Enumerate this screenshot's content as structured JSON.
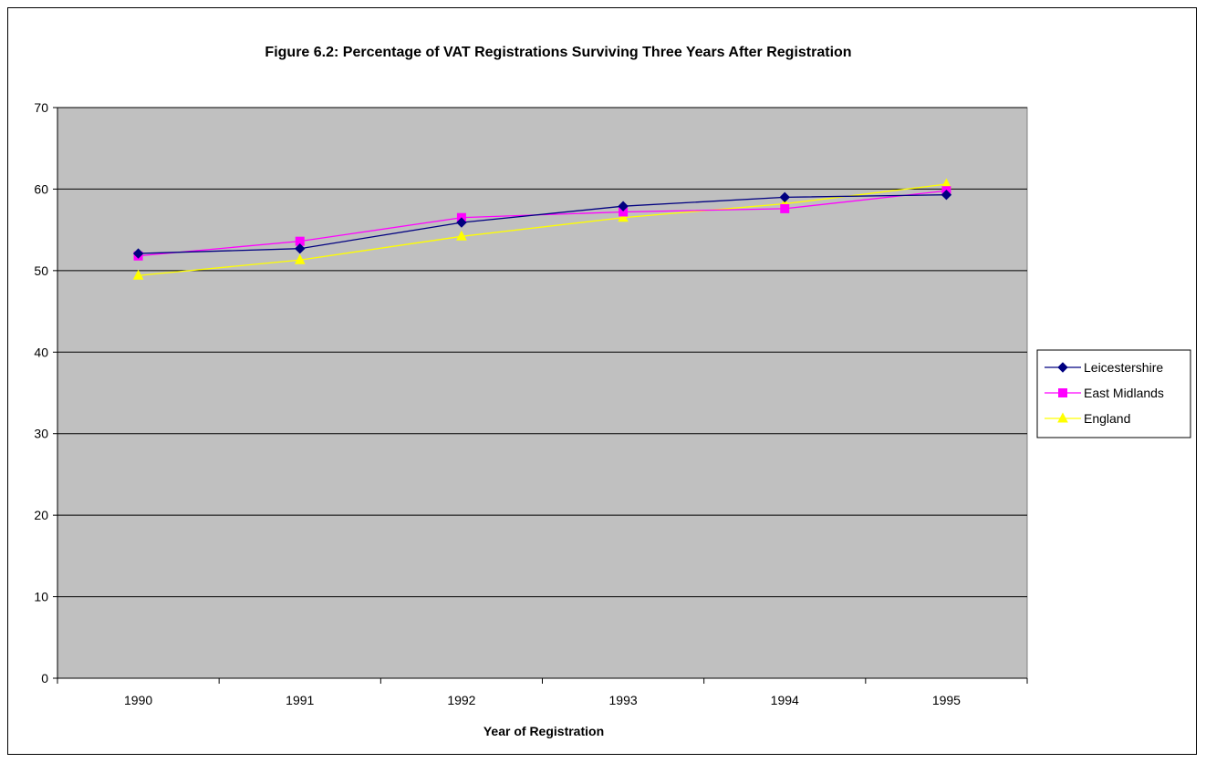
{
  "chart_data": {
    "type": "line",
    "title": "Figure 6.2: Percentage of VAT Registrations Surviving Three Years After Registration",
    "xlabel": "Year of Registration",
    "ylabel": "",
    "categories": [
      "1990",
      "1991",
      "1992",
      "1993",
      "1994",
      "1995"
    ],
    "ylim": [
      0,
      70
    ],
    "yticks": [
      0,
      10,
      20,
      30,
      40,
      50,
      60,
      70
    ],
    "grid": true,
    "legend_position": "right",
    "series": [
      {
        "name": "Leicestershire",
        "values": [
          52.1,
          52.7,
          55.9,
          57.9,
          59.0,
          59.3
        ],
        "color": "#000080",
        "marker": "diamond"
      },
      {
        "name": "East Midlands",
        "values": [
          51.8,
          53.6,
          56.5,
          57.2,
          57.6,
          59.8
        ],
        "color": "#ff00ff",
        "marker": "square"
      },
      {
        "name": "England",
        "values": [
          49.4,
          51.3,
          54.2,
          56.5,
          58.2,
          60.6
        ],
        "color": "#ffff00",
        "marker": "triangle"
      }
    ],
    "plot_background": "#c0c0c0"
  }
}
